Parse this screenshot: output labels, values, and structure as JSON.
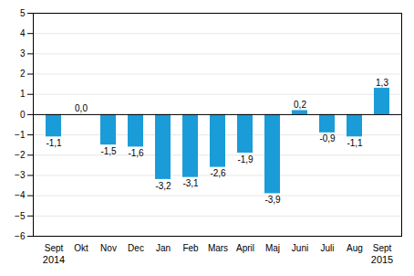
{
  "chart_data": {
    "type": "bar",
    "categories": [
      "Sept",
      "Okt",
      "Nov",
      "Dec",
      "Jan",
      "Feb",
      "Mars",
      "April",
      "Maj",
      "Juni",
      "Juli",
      "Aug",
      "Sept"
    ],
    "values": [
      -1.1,
      0.0,
      -1.5,
      -1.6,
      -3.2,
      -3.1,
      -2.6,
      -1.9,
      -3.9,
      0.2,
      -0.9,
      -1.1,
      1.3
    ],
    "value_labels": [
      "-1,1",
      "0,0",
      "-1,5",
      "-1,6",
      "-3,2",
      "-3,1",
      "-2,6",
      "-1,9",
      "-3,9",
      "0,2",
      "-0,9",
      "-1,1",
      "1,3"
    ],
    "data_labels": true,
    "color": "#1a9cd8",
    "ylim": [
      -6,
      5
    ],
    "yticks": [
      -6,
      -5,
      -4,
      -3,
      -2,
      -1,
      0,
      1,
      2,
      3,
      4,
      5
    ],
    "grid": true,
    "annotations": [
      {
        "text": "2014",
        "x": 0
      },
      {
        "text": "2015",
        "x": 12
      }
    ]
  }
}
